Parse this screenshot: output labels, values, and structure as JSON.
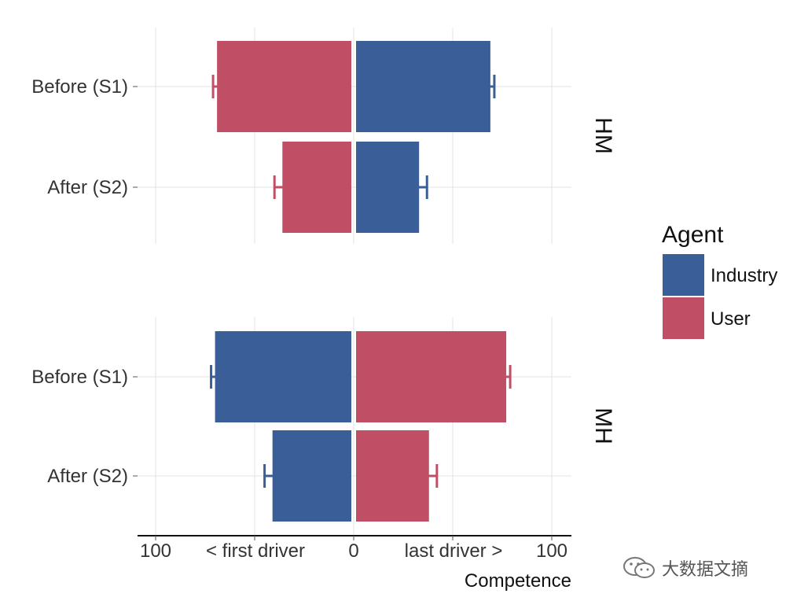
{
  "chart_data": {
    "type": "bar",
    "orientation": "horizontal-diverging",
    "facets": [
      {
        "strip_label": "HM",
        "categories": [
          "Before (S1)",
          "After (S2)"
        ],
        "left_series": "User",
        "right_series": "Industry",
        "bars": [
          {
            "category": "Before (S1)",
            "series": "User",
            "value": -69,
            "error": 2
          },
          {
            "category": "Before (S1)",
            "series": "Industry",
            "value": 69,
            "error": 2
          },
          {
            "category": "After (S2)",
            "series": "User",
            "value": -36,
            "error": 4
          },
          {
            "category": "After (S2)",
            "series": "Industry",
            "value": 33,
            "error": 4
          }
        ]
      },
      {
        "strip_label": "MH",
        "categories": [
          "Before (S1)",
          "After (S2)"
        ],
        "left_series": "Industry",
        "right_series": "User",
        "bars": [
          {
            "category": "Before (S1)",
            "series": "Industry",
            "value": -70,
            "error": 2
          },
          {
            "category": "Before (S1)",
            "series": "User",
            "value": 77,
            "error": 2
          },
          {
            "category": "After (S2)",
            "series": "Industry",
            "value": -41,
            "error": 4
          },
          {
            "category": "After (S2)",
            "series": "User",
            "value": 38,
            "error": 4
          }
        ]
      }
    ],
    "x_axis": {
      "ticks": [
        {
          "value": -100,
          "label": "100"
        },
        {
          "value": -50,
          "label": "< first driver"
        },
        {
          "value": 0,
          "label": "0"
        },
        {
          "value": 50,
          "label": "last driver >"
        },
        {
          "value": 100,
          "label": "100"
        }
      ],
      "xlim": [
        -110,
        110
      ],
      "title": "Competence"
    },
    "legend": {
      "title": "Agent",
      "placement": "right",
      "entries": [
        {
          "name": "Industry",
          "color": "#3a5e98"
        },
        {
          "name": "User",
          "color": "#c04f65"
        }
      ]
    },
    "grid": true
  },
  "watermark": {
    "icon": "wechat-icon",
    "text": "大数据文摘"
  }
}
